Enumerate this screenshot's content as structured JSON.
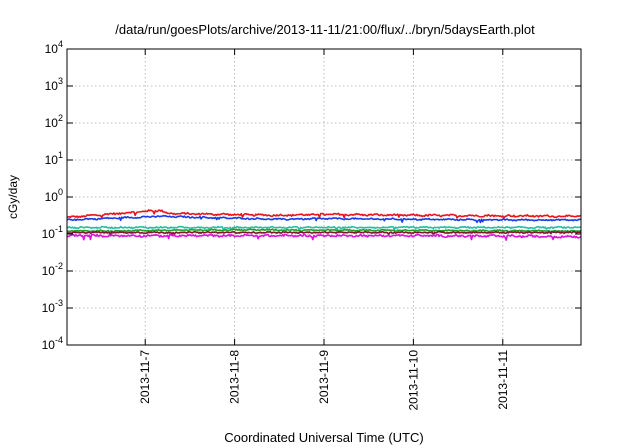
{
  "chart_data": {
    "type": "line",
    "title": "/data/run/goesPlots/archive/2013-11-11/21:00/flux/../bryn/5daysEarth.plot",
    "xlabel": "Coordinated Universal Time (UTC)",
    "ylabel": "cGy/day",
    "y_scale": "log",
    "ylim": [
      0.0001,
      10000
    ],
    "y_ticks": [
      {
        "value": 0.0001,
        "base": "10",
        "exp": "-4"
      },
      {
        "value": 0.001,
        "base": "10",
        "exp": "-3"
      },
      {
        "value": 0.01,
        "base": "10",
        "exp": "-2"
      },
      {
        "value": 0.1,
        "base": "10",
        "exp": "-1"
      },
      {
        "value": 1,
        "base": "10",
        "exp": "0"
      },
      {
        "value": 10,
        "base": "10",
        "exp": "1"
      },
      {
        "value": 100,
        "base": "10",
        "exp": "2"
      },
      {
        "value": 1000,
        "base": "10",
        "exp": "3"
      },
      {
        "value": 10000,
        "base": "10",
        "exp": "4"
      }
    ],
    "xlim": [
      "2013-11-06T03:00",
      "2013-11-11T21:00"
    ],
    "x_ticks": [
      {
        "value": "2013-11-07",
        "label": "2013-11-7"
      },
      {
        "value": "2013-11-08",
        "label": "2013-11-8"
      },
      {
        "value": "2013-11-09",
        "label": "2013-11-9"
      },
      {
        "value": "2013-11-10",
        "label": "2013-11-10"
      },
      {
        "value": "2013-11-11",
        "label": "2013-11-11"
      }
    ],
    "grid": true,
    "legend": "none",
    "series": [
      {
        "color": "#e8141a",
        "level": 0.3,
        "noise": 0.045,
        "points": [
          [
            "2013-11-06T03:00",
            0.28
          ],
          [
            "2013-11-06T12:00",
            0.33
          ],
          [
            "2013-11-07T04:00",
            0.44
          ],
          [
            "2013-11-07T06:00",
            0.36
          ],
          [
            "2013-11-08T12:00",
            0.32
          ],
          [
            "2013-11-09T00:00",
            0.34
          ],
          [
            "2013-11-10T00:00",
            0.32
          ],
          [
            "2013-11-11T00:00",
            0.31
          ],
          [
            "2013-11-11T21:00",
            0.3
          ]
        ]
      },
      {
        "color": "#1a3ce8",
        "level": 0.245,
        "noise": 0.035,
        "points": [
          [
            "2013-11-06T03:00",
            0.24
          ],
          [
            "2013-11-06T12:00",
            0.26
          ],
          [
            "2013-11-07T04:00",
            0.3
          ],
          [
            "2013-11-08T12:00",
            0.25
          ],
          [
            "2013-11-09T00:00",
            0.26
          ],
          [
            "2013-11-10T00:00",
            0.25
          ],
          [
            "2013-11-11T00:00",
            0.24
          ],
          [
            "2013-11-11T21:00",
            0.24
          ]
        ]
      },
      {
        "color": "#22c0a0",
        "level": 0.15,
        "noise": 0.035,
        "points": [
          [
            "2013-11-06T03:00",
            0.15
          ],
          [
            "2013-11-08T00:00",
            0.15
          ],
          [
            "2013-11-10T00:00",
            0.15
          ],
          [
            "2013-11-11T21:00",
            0.15
          ]
        ]
      },
      {
        "color": "#2a9a2a",
        "level": 0.125,
        "noise": 0.03,
        "points": [
          [
            "2013-11-06T03:00",
            0.12
          ],
          [
            "2013-11-08T00:00",
            0.13
          ],
          [
            "2013-11-10T00:00",
            0.125
          ],
          [
            "2013-11-11T21:00",
            0.12
          ]
        ]
      },
      {
        "color": "#7a1a2a",
        "level": 0.11,
        "noise": 0.03,
        "points": [
          [
            "2013-11-06T03:00",
            0.11
          ],
          [
            "2013-11-08T00:00",
            0.11
          ],
          [
            "2013-11-10T00:00",
            0.11
          ],
          [
            "2013-11-11T21:00",
            0.11
          ]
        ]
      },
      {
        "color": "#e010e0",
        "level": 0.09,
        "noise": 0.05,
        "points": [
          [
            "2013-11-06T03:00",
            0.09
          ],
          [
            "2013-11-08T00:00",
            0.09
          ],
          [
            "2013-11-10T00:00",
            0.09
          ],
          [
            "2013-11-11T21:00",
            0.085
          ]
        ]
      }
    ]
  }
}
